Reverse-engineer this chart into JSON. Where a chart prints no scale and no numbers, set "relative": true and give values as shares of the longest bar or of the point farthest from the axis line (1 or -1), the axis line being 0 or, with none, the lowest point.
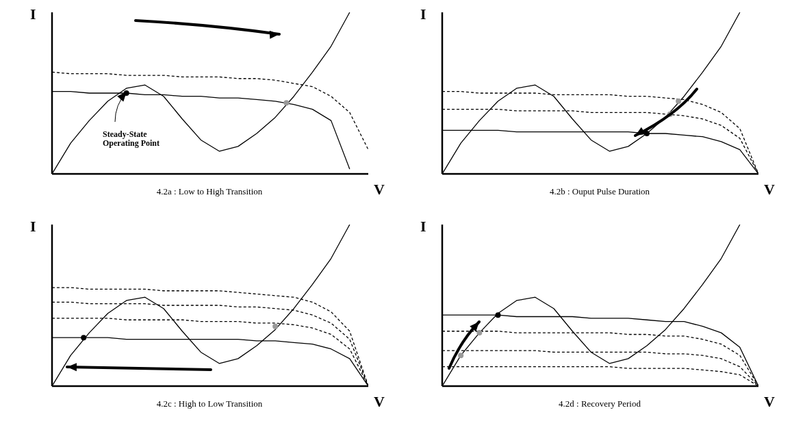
{
  "chart_data": [
    {
      "type": "line",
      "title": "4.2a : Low to High Transition",
      "xlabel": "V",
      "ylabel": "I",
      "relative": true,
      "marker": "none",
      "categories": [
        null,
        null,
        null,
        null,
        null,
        null,
        null,
        null,
        null,
        null,
        null,
        null,
        null,
        null,
        null,
        null,
        null,
        null
      ],
      "annotations": [
        "Steady-State Operating Point"
      ],
      "series": [
        {
          "color": "#000000",
          "line_style": "solid",
          "values": [
            0,
            0.19,
            0.33,
            0.45,
            0.53,
            0.55,
            0.48,
            0.34,
            0.21,
            0.14,
            0.17,
            0.25,
            0.35,
            0.48,
            0.63,
            0.79,
            1.0,
            null
          ]
        },
        {
          "color": "#000000",
          "line_style": "solid",
          "values": [
            0.51,
            0.51,
            0.5,
            0.5,
            0.5,
            0.49,
            0.49,
            0.48,
            0.48,
            0.47,
            0.47,
            0.46,
            0.45,
            0.43,
            0.4,
            0.33,
            0.03,
            null
          ]
        },
        {
          "color": "#000000",
          "line_style": "dashed",
          "values": [
            0.63,
            0.62,
            0.62,
            0.62,
            0.61,
            0.61,
            0.61,
            0.6,
            0.6,
            0.6,
            0.59,
            0.59,
            0.58,
            0.56,
            0.54,
            0.48,
            0.38,
            0.15
          ]
        }
      ]
    },
    {
      "type": "line",
      "title": "4.2b : Ouput Pulse Duration",
      "xlabel": "V",
      "ylabel": "I",
      "relative": true,
      "marker": "none",
      "categories": [
        null,
        null,
        null,
        null,
        null,
        null,
        null,
        null,
        null,
        null,
        null,
        null,
        null,
        null,
        null,
        null,
        null,
        null
      ],
      "series": [
        {
          "color": "#000000",
          "line_style": "solid",
          "values": [
            0,
            0.19,
            0.33,
            0.45,
            0.53,
            0.55,
            0.48,
            0.34,
            0.21,
            0.14,
            0.17,
            0.25,
            0.35,
            0.48,
            0.63,
            0.79,
            1.0,
            null
          ]
        },
        {
          "color": "#000000",
          "line_style": "dashed",
          "values": [
            0.51,
            0.51,
            0.5,
            0.5,
            0.5,
            0.5,
            0.49,
            0.49,
            0.49,
            0.49,
            0.48,
            0.48,
            0.47,
            0.46,
            0.43,
            0.38,
            0.28,
            0
          ]
        },
        {
          "color": "#000000",
          "line_style": "dashed",
          "values": [
            0.4,
            0.4,
            0.4,
            0.4,
            0.39,
            0.39,
            0.39,
            0.39,
            0.38,
            0.38,
            0.38,
            0.38,
            0.37,
            0.36,
            0.34,
            0.3,
            0.22,
            0
          ]
        },
        {
          "color": "#000000",
          "line_style": "solid",
          "values": [
            0.27,
            0.27,
            0.27,
            0.27,
            0.26,
            0.26,
            0.26,
            0.26,
            0.26,
            0.26,
            0.26,
            0.25,
            0.25,
            0.24,
            0.23,
            0.2,
            0.15,
            0
          ]
        }
      ]
    },
    {
      "type": "line",
      "title": "4.2c : High to Low Transition",
      "xlabel": "V",
      "ylabel": "I",
      "relative": true,
      "marker": "none",
      "categories": [
        null,
        null,
        null,
        null,
        null,
        null,
        null,
        null,
        null,
        null,
        null,
        null,
        null,
        null,
        null,
        null,
        null,
        null
      ],
      "series": [
        {
          "color": "#000000",
          "line_style": "solid",
          "values": [
            0,
            0.19,
            0.33,
            0.45,
            0.53,
            0.55,
            0.48,
            0.34,
            0.21,
            0.14,
            0.17,
            0.25,
            0.35,
            0.48,
            0.63,
            0.79,
            1.0,
            null
          ]
        },
        {
          "color": "#000000",
          "line_style": "dashed",
          "values": [
            0.61,
            0.61,
            0.6,
            0.6,
            0.6,
            0.6,
            0.59,
            0.59,
            0.59,
            0.59,
            0.58,
            0.57,
            0.56,
            0.55,
            0.52,
            0.46,
            0.34,
            0
          ]
        },
        {
          "color": "#000000",
          "line_style": "dashed",
          "values": [
            0.52,
            0.52,
            0.51,
            0.51,
            0.51,
            0.51,
            0.5,
            0.5,
            0.5,
            0.5,
            0.49,
            0.49,
            0.48,
            0.47,
            0.44,
            0.39,
            0.29,
            0
          ]
        },
        {
          "color": "#000000",
          "line_style": "dashed",
          "values": [
            0.42,
            0.42,
            0.42,
            0.42,
            0.41,
            0.41,
            0.41,
            0.41,
            0.4,
            0.4,
            0.4,
            0.39,
            0.39,
            0.38,
            0.36,
            0.32,
            0.23,
            0
          ]
        },
        {
          "color": "#000000",
          "line_style": "solid",
          "values": [
            0.3,
            0.3,
            0.3,
            0.3,
            0.29,
            0.29,
            0.29,
            0.29,
            0.29,
            0.29,
            0.29,
            0.28,
            0.28,
            0.27,
            0.26,
            0.23,
            0.17,
            0
          ]
        }
      ]
    },
    {
      "type": "line",
      "title": "4.2d : Recovery Period",
      "xlabel": "V",
      "ylabel": "I",
      "relative": true,
      "marker": "none",
      "categories": [
        null,
        null,
        null,
        null,
        null,
        null,
        null,
        null,
        null,
        null,
        null,
        null,
        null,
        null,
        null,
        null,
        null,
        null
      ],
      "series": [
        {
          "color": "#000000",
          "line_style": "solid",
          "values": [
            0,
            0.19,
            0.33,
            0.45,
            0.53,
            0.55,
            0.48,
            0.34,
            0.21,
            0.14,
            0.17,
            0.25,
            0.35,
            0.48,
            0.63,
            0.79,
            1.0,
            null
          ]
        },
        {
          "color": "#000000",
          "line_style": "solid",
          "values": [
            0.44,
            0.44,
            0.44,
            0.44,
            0.43,
            0.43,
            0.43,
            0.43,
            0.42,
            0.42,
            0.42,
            0.41,
            0.4,
            0.4,
            0.37,
            0.33,
            0.24,
            0
          ]
        },
        {
          "color": "#000000",
          "line_style": "dashed",
          "values": [
            0.34,
            0.34,
            0.34,
            0.34,
            0.33,
            0.33,
            0.33,
            0.33,
            0.33,
            0.33,
            0.32,
            0.32,
            0.31,
            0.31,
            0.29,
            0.26,
            0.19,
            0
          ]
        },
        {
          "color": "#000000",
          "line_style": "dashed",
          "values": [
            0.22,
            0.22,
            0.22,
            0.22,
            0.22,
            0.22,
            0.21,
            0.21,
            0.21,
            0.21,
            0.21,
            0.21,
            0.2,
            0.2,
            0.19,
            0.17,
            0.12,
            0
          ]
        },
        {
          "color": "#000000",
          "line_style": "dashed",
          "values": [
            0.12,
            0.12,
            0.12,
            0.12,
            0.12,
            0.12,
            0.12,
            0.12,
            0.12,
            0.12,
            0.11,
            0.11,
            0.11,
            0.11,
            0.1,
            0.09,
            0.07,
            0
          ]
        }
      ]
    }
  ]
}
